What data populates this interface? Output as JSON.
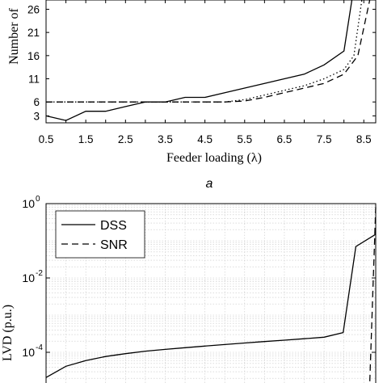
{
  "chart_data": [
    {
      "type": "line",
      "panel_label": "a",
      "xlabel": "Feeder loading (λ)",
      "ylabel": "Number of",
      "xlim": [
        0.5,
        8.8
      ],
      "ylim": [
        1.5,
        28
      ],
      "xticks": [
        "0.5",
        "1",
        "1.5",
        "2",
        "2.5",
        "3",
        "3.5",
        "4",
        "4.5",
        "5",
        "5.5",
        "6",
        "6.5",
        "7",
        "7.5",
        "8",
        "8.5"
      ],
      "yticks": [
        "3",
        "6",
        "11",
        "16",
        "21",
        "26"
      ],
      "series": [
        {
          "style": "solid",
          "x": [
            0.5,
            1.0,
            1.5,
            2.0,
            2.5,
            3.0,
            3.5,
            4.0,
            4.5,
            5.0,
            5.5,
            6.0,
            6.5,
            7.0,
            7.5,
            8.0,
            8.2
          ],
          "y": [
            3,
            2,
            4,
            4,
            5,
            6,
            6,
            7,
            7,
            8,
            9,
            10,
            11,
            12,
            14,
            17,
            28
          ]
        },
        {
          "style": "dotted",
          "x": [
            0.5,
            5.0,
            5.5,
            6.0,
            6.5,
            7.0,
            7.5,
            8.0,
            8.25,
            8.45
          ],
          "y": [
            6,
            6,
            6.5,
            7.5,
            8.5,
            9.5,
            11,
            13,
            16,
            28
          ]
        },
        {
          "style": "dashed",
          "x": [
            0.5,
            5.0,
            5.5,
            6.0,
            6.5,
            7.0,
            7.5,
            8.0,
            8.35,
            8.65
          ],
          "y": [
            6,
            6,
            6.2,
            7,
            8,
            9,
            10,
            12,
            16,
            28
          ]
        }
      ]
    },
    {
      "type": "line",
      "ylabel": "LVD (p.u.)",
      "yscale": "log",
      "ylim": [
        1e-05,
        1
      ],
      "xlim": [
        0.5,
        8.8
      ],
      "grid": true,
      "legend": {
        "position": "top-left",
        "entries": [
          "DSS",
          "SNR"
        ]
      },
      "ytick_labels": [
        {
          "base": "10",
          "exp": "0"
        },
        {
          "base": "10",
          "exp": "-2"
        },
        {
          "base": "10",
          "exp": "-4"
        }
      ],
      "series": [
        {
          "name": "DSS",
          "style": "solid",
          "x": [
            0.5,
            1.0,
            1.5,
            2.0,
            2.5,
            3.0,
            3.5,
            4.0,
            4.5,
            5.0,
            5.5,
            6.0,
            6.5,
            7.0,
            7.5,
            7.98,
            8.3,
            8.8
          ],
          "y": [
            2.1e-05,
            4.2e-05,
            6e-05,
            7.7e-05,
            9.2e-05,
            0.000107,
            0.00012,
            0.000133,
            0.000147,
            0.000162,
            0.000178,
            0.000195,
            0.000212,
            0.000232,
            0.000255,
            0.00034,
            0.07,
            0.15
          ]
        },
        {
          "name": "SNR",
          "style": "dashed",
          "x": [
            8.5,
            8.65,
            8.8
          ],
          "y": [
            1e-05,
            1.5e-05,
            0.8
          ]
        }
      ]
    }
  ]
}
